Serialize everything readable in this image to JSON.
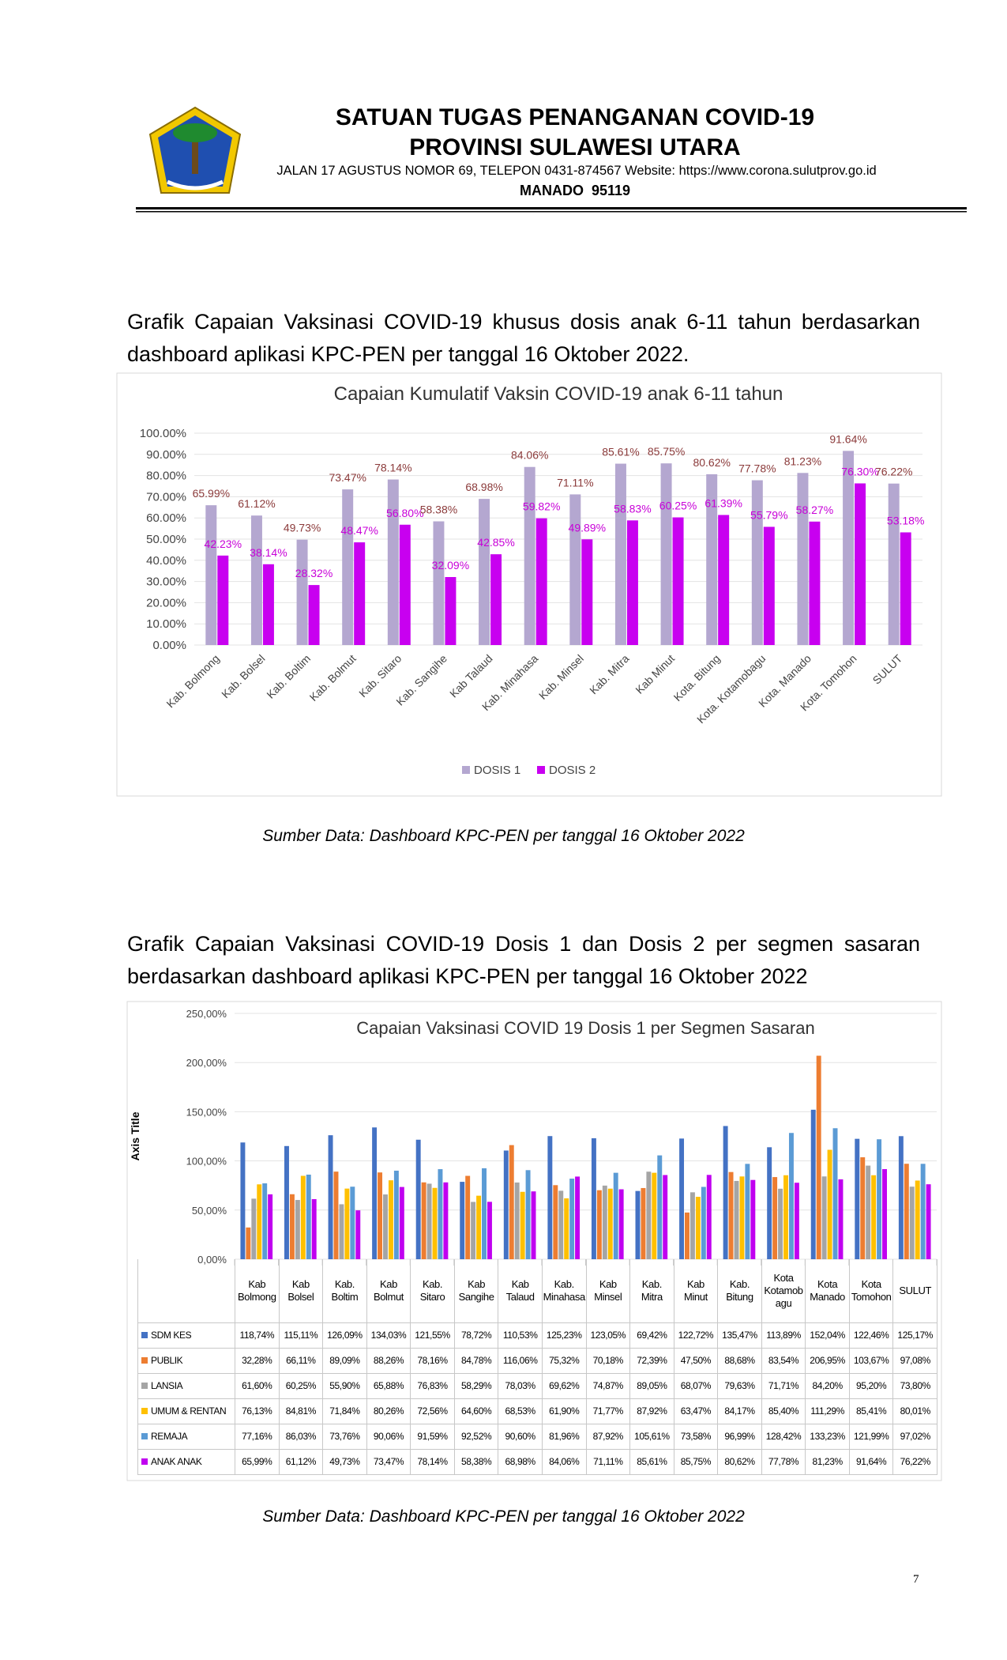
{
  "header": {
    "title": "SATUAN TUGAS PENANGANAN COVID-19",
    "subtitle": "PROVINSI SULAWESI UTARA",
    "address": "JALAN 17 AGUSTUS NOMOR 69, TELEPON 0431-874567 Website: https://www.corona.sulutprov.go.id",
    "city": "MANADO  95119"
  },
  "paragraphs": [
    "Grafik Capaian Vaksinasi COVID-19 khusus dosis anak 6-11 tahun berdasarkan dashboard aplikasi KPC-PEN per tanggal 16 Oktober 2022.",
    "Grafik Capaian Vaksinasi COVID-19 Dosis 1 dan Dosis 2 per segmen sasaran berdasarkan dashboard aplikasi KPC-PEN per tanggal 16 Oktober 2022"
  ],
  "captions": [
    "Sumber Data: Dashboard KPC-PEN per tanggal 16 Oktober 2022",
    "Sumber Data: Dashboard KPC-PEN per tanggal 16 Oktober 2022"
  ],
  "page_number": "7",
  "chart_data": [
    {
      "type": "bar",
      "title": "Capaian Kumulatif Vaksin COVID-19 anak 6-11 tahun",
      "grid": true,
      "legend": "bottom",
      "data_table": false,
      "categories": [
        "Kab. Bolmong",
        "Kab. Bolsel",
        "Kab. Boltim",
        "Kab. Bolmut",
        "Kab. Sitaro",
        "Kab. Sangihe",
        "Kab Talaud",
        "Kab. Minahasa",
        "Kab. Minsel",
        "Kab. Mitra",
        "Kab Minut",
        "Kota. Bitung",
        "Kota. Kotamobagu",
        "Kota. Manado",
        "Kota. Tomohon",
        "SULUT"
      ],
      "ylim": [
        0,
        100
      ],
      "yticks": [
        {
          "value": 0,
          "label": "0.00%"
        },
        {
          "value": 10,
          "label": "10.00%"
        },
        {
          "value": 20,
          "label": "20.00%"
        },
        {
          "value": 30,
          "label": "30.00%"
        },
        {
          "value": 40,
          "label": "40.00%"
        },
        {
          "value": 50,
          "label": "50.00%"
        },
        {
          "value": 60,
          "label": "60.00%"
        },
        {
          "value": 70,
          "label": "70.00%"
        },
        {
          "value": 80,
          "label": "80.00%"
        },
        {
          "value": 90,
          "label": "90.00%"
        },
        {
          "value": 100,
          "label": "100.00%"
        }
      ],
      "series": [
        {
          "name": "DOSIS 1",
          "color": "#b4a7d0",
          "label_color": "#8b3a3a",
          "values": [
            65.99,
            61.12,
            49.73,
            73.47,
            78.14,
            58.38,
            68.98,
            84.06,
            71.11,
            85.61,
            85.75,
            80.62,
            77.78,
            81.23,
            91.64,
            76.22
          ],
          "value_labels": [
            "65.99%",
            "61.12%",
            "49.73%",
            "73.47%",
            "78.14%",
            "58.38%",
            "68.98%",
            "84.06%",
            "71.11%",
            "85.61%",
            "85.75%",
            "80.62%",
            "77.78%",
            "81.23%",
            "91.64%",
            "76.22%"
          ]
        },
        {
          "name": "DOSIS 2",
          "color": "#c800f0",
          "label_color": "#c800d8",
          "values": [
            42.23,
            38.14,
            28.32,
            48.47,
            56.8,
            32.09,
            42.85,
            59.82,
            49.89,
            58.83,
            60.25,
            61.39,
            55.79,
            58.27,
            76.3,
            53.18
          ],
          "value_labels": [
            "42.23%",
            "38.14%",
            "28.32%",
            "48.47%",
            "56.80%",
            "32.09%",
            "42.85%",
            "59.82%",
            "49.89%",
            "58.83%",
            "60.25%",
            "61.39%",
            "55.79%",
            "58.27%",
            "76.30%",
            "53.18%"
          ]
        }
      ]
    },
    {
      "type": "bar",
      "title": "Capaian Vaksinasi COVID 19 Dosis 1 per Segmen Sasaran",
      "y_axis_label": "Axis Title",
      "grid": true,
      "data_table": true,
      "categories": [
        "Kab Bolmong",
        "Kab Bolsel",
        "Kab. Boltim",
        "Kab Bolmut",
        "Kab. Sitaro",
        "Kab Sangihe",
        "Kab Talaud",
        "Kab. Minahasa",
        "Kab Minsel",
        "Kab. Mitra",
        "Kab Minut",
        "Kab. Bitung",
        "Kota Kotamobagu",
        "Kota Manado",
        "Kota Tomohon",
        "SULUT"
      ],
      "ylim": [
        0,
        250
      ],
      "yticks": [
        {
          "value": 0,
          "label": "0,00%"
        },
        {
          "value": 50,
          "label": "50,00%"
        },
        {
          "value": 100,
          "label": "100,00%"
        },
        {
          "value": 150,
          "label": "150,00%"
        },
        {
          "value": 200,
          "label": "200,00%"
        },
        {
          "value": 250,
          "label": "250,00%"
        }
      ],
      "series": [
        {
          "name": "SDM KES",
          "color": "#4472c4",
          "values": [
            118.74,
            115.11,
            126.09,
            134.03,
            121.55,
            78.72,
            110.53,
            125.23,
            123.05,
            69.42,
            122.72,
            135.47,
            113.89,
            152.04,
            122.46,
            125.17
          ],
          "value_labels": [
            "118,74%",
            "115,11%",
            "126,09%",
            "134,03%",
            "121,55%",
            "78,72%",
            "110,53%",
            "125,23%",
            "123,05%",
            "69,42%",
            "122,72%",
            "135,47%",
            "113,89%",
            "152,04%",
            "122,46%",
            "125,17%"
          ]
        },
        {
          "name": "PUBLIK",
          "color": "#ed7d31",
          "values": [
            32.28,
            66.11,
            89.09,
            88.26,
            78.16,
            84.78,
            116.06,
            75.32,
            70.18,
            72.39,
            47.5,
            88.68,
            83.54,
            206.95,
            103.67,
            97.08
          ],
          "value_labels": [
            "32,28%",
            "66,11%",
            "89,09%",
            "88,26%",
            "78,16%",
            "84,78%",
            "116,06%",
            "75,32%",
            "70,18%",
            "72,39%",
            "47,50%",
            "88,68%",
            "83,54%",
            "206,95%",
            "103,67%",
            "97,08%"
          ]
        },
        {
          "name": "LANSIA",
          "color": "#a5a5a5",
          "values": [
            61.6,
            60.25,
            55.9,
            65.88,
            76.83,
            58.29,
            78.03,
            69.62,
            74.87,
            89.05,
            68.07,
            79.63,
            71.71,
            84.2,
            95.2,
            73.8
          ],
          "value_labels": [
            "61,60%",
            "60,25%",
            "55,90%",
            "65,88%",
            "76,83%",
            "58,29%",
            "78,03%",
            "69,62%",
            "74,87%",
            "89,05%",
            "68,07%",
            "79,63%",
            "71,71%",
            "84,20%",
            "95,20%",
            "73,80%"
          ]
        },
        {
          "name": "UMUM & RENTAN",
          "color": "#ffc000",
          "values": [
            76.13,
            84.81,
            71.84,
            80.26,
            72.56,
            64.6,
            68.53,
            61.9,
            71.77,
            87.92,
            63.47,
            84.17,
            85.4,
            111.29,
            85.41,
            80.01
          ],
          "value_labels": [
            "76,13%",
            "84,81%",
            "71,84%",
            "80,26%",
            "72,56%",
            "64,60%",
            "68,53%",
            "61,90%",
            "71,77%",
            "87,92%",
            "63,47%",
            "84,17%",
            "85,40%",
            "111,29%",
            "85,41%",
            "80,01%"
          ]
        },
        {
          "name": "REMAJA",
          "color": "#5b9bd5",
          "values": [
            77.16,
            86.03,
            73.76,
            90.06,
            91.59,
            92.52,
            90.6,
            81.96,
            87.92,
            105.61,
            73.58,
            96.99,
            128.42,
            133.23,
            121.99,
            97.02
          ],
          "value_labels": [
            "77,16%",
            "86,03%",
            "73,76%",
            "90,06%",
            "91,59%",
            "92,52%",
            "90,60%",
            "81,96%",
            "87,92%",
            "105,61%",
            "73,58%",
            "96,99%",
            "128,42%",
            "133,23%",
            "121,99%",
            "97,02%"
          ]
        },
        {
          "name": "ANAK ANAK",
          "color": "#c000f0",
          "values": [
            65.99,
            61.12,
            49.73,
            73.47,
            78.14,
            58.38,
            68.98,
            84.06,
            71.11,
            85.61,
            85.75,
            80.62,
            77.78,
            81.23,
            91.64,
            76.22
          ],
          "value_labels": [
            "65,99%",
            "61,12%",
            "49,73%",
            "73,47%",
            "78,14%",
            "58,38%",
            "68,98%",
            "84,06%",
            "71,11%",
            "85,61%",
            "85,75%",
            "80,62%",
            "77,78%",
            "81,23%",
            "91,64%",
            "76,22%"
          ]
        }
      ]
    }
  ]
}
